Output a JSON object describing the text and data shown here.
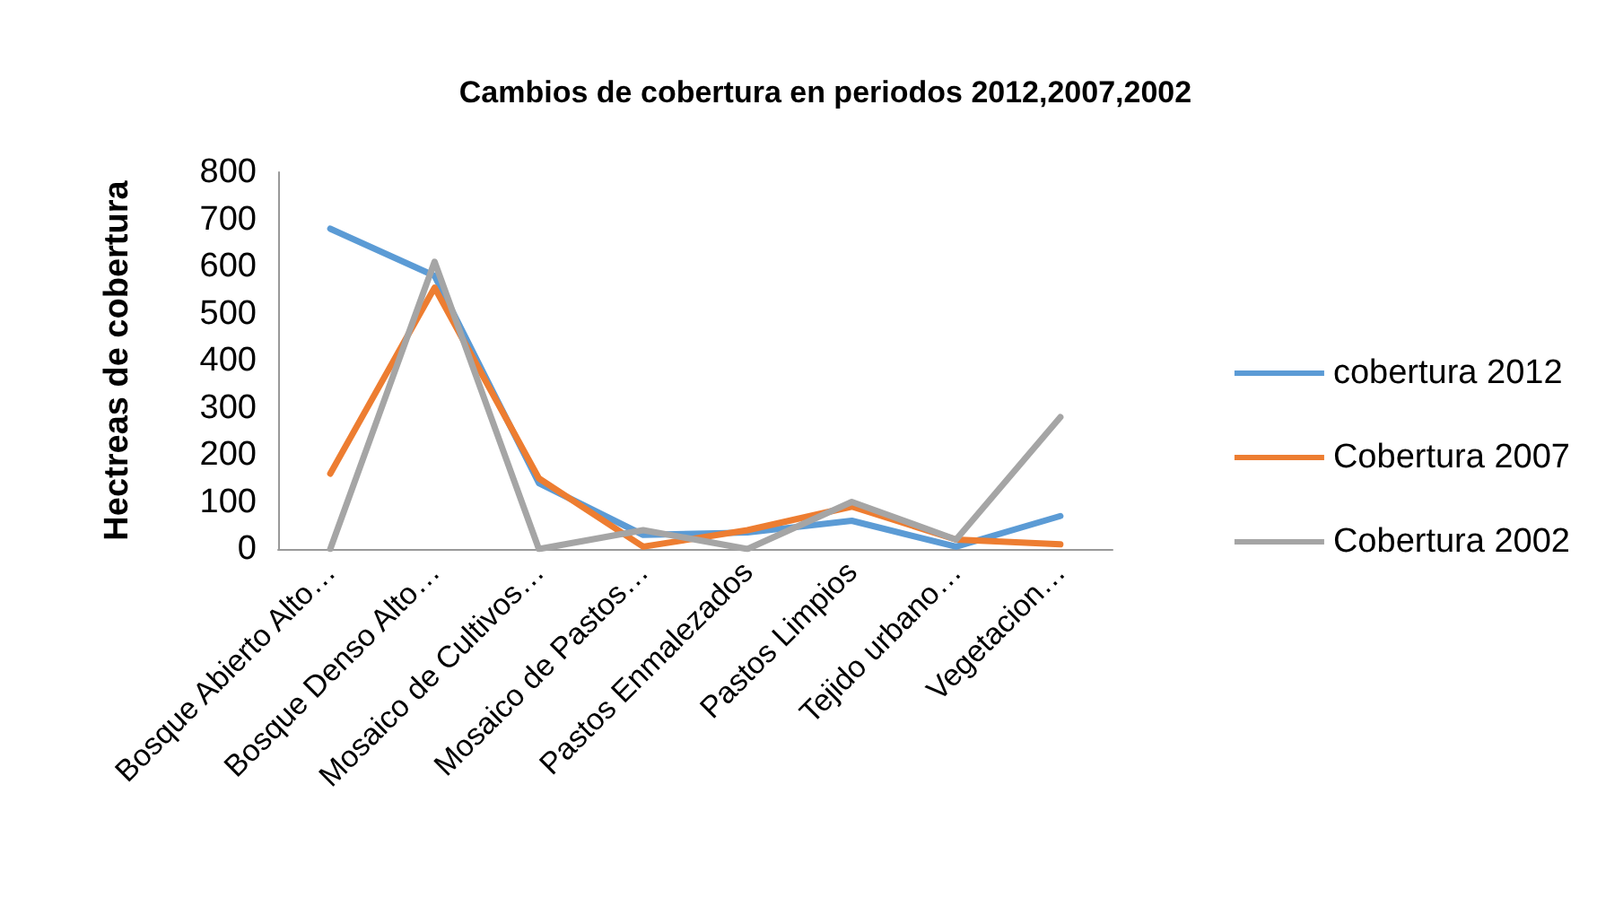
{
  "chart_data": {
    "type": "line",
    "title": "Cambios de cobertura en periodos 2012,2007,2002",
    "ylabel": "Hectreas de cobertura",
    "categories": [
      "Bosque Abierto Alto…",
      "Bosque Denso Alto…",
      "Mosaico de Cultivos…",
      "Mosaico de Pastos…",
      "Pastos Enmalezados",
      "Pastos Limpios",
      "Tejido urbano…",
      "Vegetacion…"
    ],
    "series": [
      {
        "name": "cobertura 2012",
        "color": "#5b9bd5",
        "values": [
          680,
          580,
          140,
          30,
          35,
          60,
          5,
          70
        ]
      },
      {
        "name": "Cobertura 2007",
        "color": "#ed7d31",
        "values": [
          160,
          555,
          150,
          5,
          40,
          90,
          20,
          10
        ]
      },
      {
        "name": "Cobertura 2002",
        "color": "#a5a5a5",
        "values": [
          0,
          610,
          0,
          40,
          0,
          100,
          20,
          280
        ]
      }
    ],
    "ylim": [
      0,
      800
    ],
    "yticks": [
      0,
      100,
      200,
      300,
      400,
      500,
      600,
      700,
      800
    ],
    "grid": false,
    "legend": "right",
    "marker": "none",
    "line_style": "solid"
  }
}
